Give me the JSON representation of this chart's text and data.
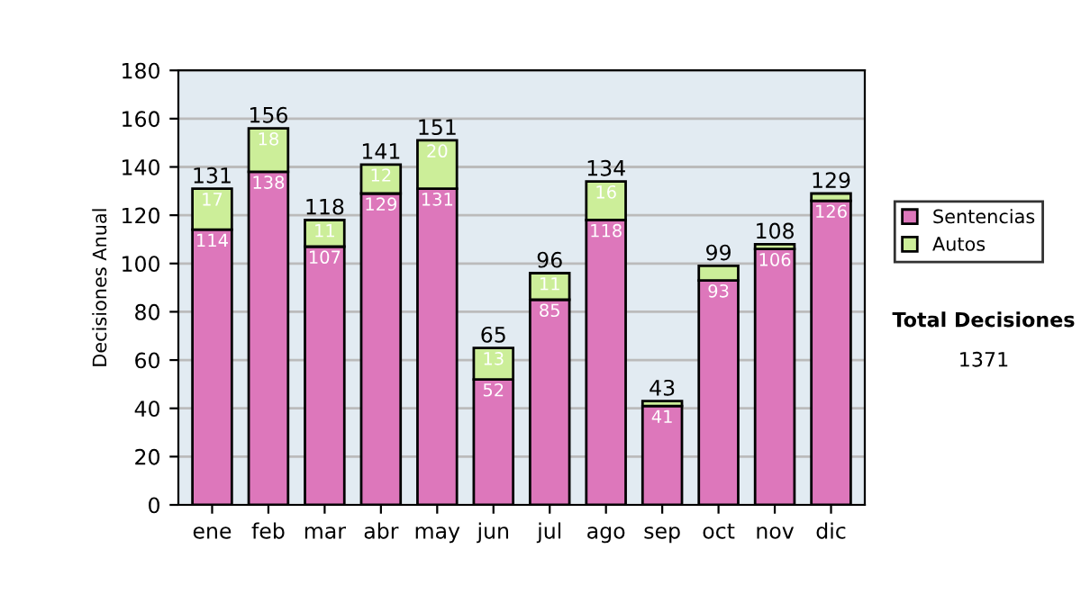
{
  "chart_data": {
    "type": "bar",
    "stacked": true,
    "ylabel": "Decisiones Anual",
    "categories": [
      "ene",
      "feb",
      "mar",
      "abr",
      "may",
      "jun",
      "jul",
      "ago",
      "sep",
      "oct",
      "nov",
      "dic"
    ],
    "series": [
      {
        "name": "Sentencias",
        "color": "#dd77bb",
        "values": [
          114,
          138,
          107,
          129,
          131,
          52,
          85,
          118,
          41,
          93,
          106,
          126
        ],
        "value_labels": [
          "114",
          "138",
          "107",
          "129",
          "131",
          "52",
          "85",
          "118",
          "41",
          "93",
          "106",
          "126"
        ]
      },
      {
        "name": "Autos",
        "color": "#ccee99",
        "values": [
          17,
          18,
          11,
          12,
          20,
          13,
          11,
          16,
          2,
          6,
          2,
          3
        ],
        "value_labels": [
          "17",
          "18",
          "11",
          "12",
          "20",
          "13",
          "11",
          "16",
          null,
          null,
          null,
          null
        ]
      }
    ],
    "totals": [
      "131",
      "156",
      "118",
      "141",
      "151",
      "65",
      "96",
      "134",
      "43",
      "99",
      "108",
      "129"
    ],
    "ylim": [
      0,
      180
    ],
    "yticks": [
      0,
      20,
      40,
      60,
      80,
      100,
      120,
      140,
      160,
      180
    ],
    "grid": "y",
    "legend": "right",
    "annotations": [
      "Total Decisiones",
      "1371"
    ]
  }
}
